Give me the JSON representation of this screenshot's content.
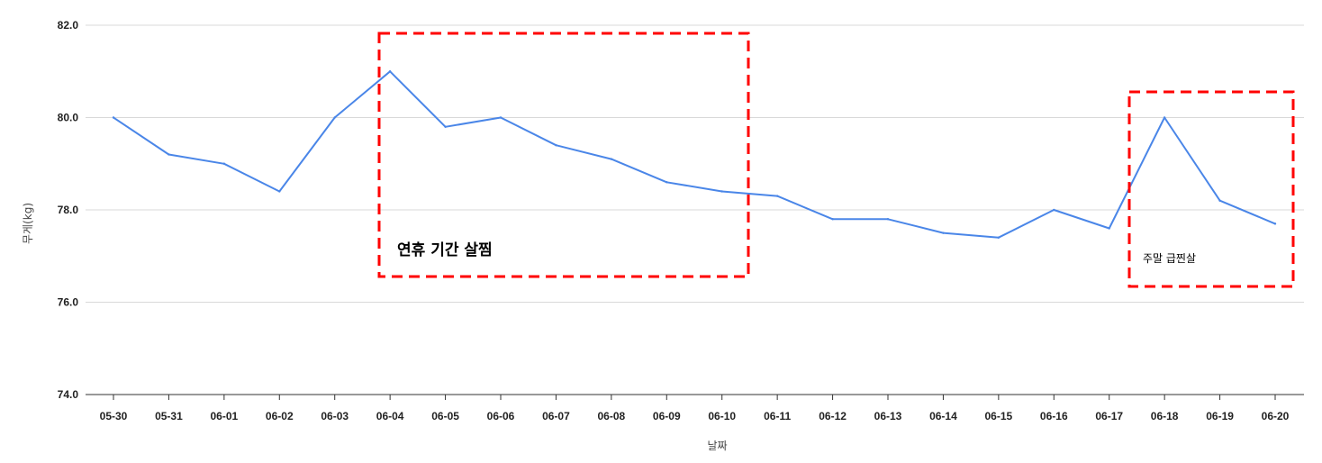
{
  "chart_data": {
    "type": "line",
    "title": "",
    "xlabel": "날짜",
    "ylabel": "무게(kg)",
    "ylim": [
      74.0,
      82.0
    ],
    "yticks": [
      "74.0",
      "76.0",
      "78.0",
      "80.0",
      "82.0"
    ],
    "grid": true,
    "categories": [
      "05-30",
      "05-31",
      "06-01",
      "06-02",
      "06-03",
      "06-04",
      "06-05",
      "06-06",
      "06-07",
      "06-08",
      "06-09",
      "06-10",
      "06-11",
      "06-12",
      "06-13",
      "06-14",
      "06-15",
      "06-16",
      "06-17",
      "06-18",
      "06-19",
      "06-20"
    ],
    "series": [
      {
        "values": [
          80.0,
          79.2,
          79.0,
          78.4,
          80.0,
          81.0,
          79.8,
          80.0,
          79.4,
          79.1,
          78.6,
          78.4,
          78.3,
          77.8,
          77.8,
          77.5,
          77.4,
          78.0,
          77.6,
          80.0,
          78.2,
          77.7
        ],
        "color": "#4a86e8"
      }
    ],
    "annotations": [
      {
        "text": "연휴 기간 살찜",
        "from": "06-04",
        "to": "06-10",
        "size": "large",
        "color": "#ff0000"
      },
      {
        "text": "주말 급찐살",
        "from": "06-18",
        "to": "06-20",
        "size": "small",
        "color": "#ff0000"
      }
    ]
  }
}
